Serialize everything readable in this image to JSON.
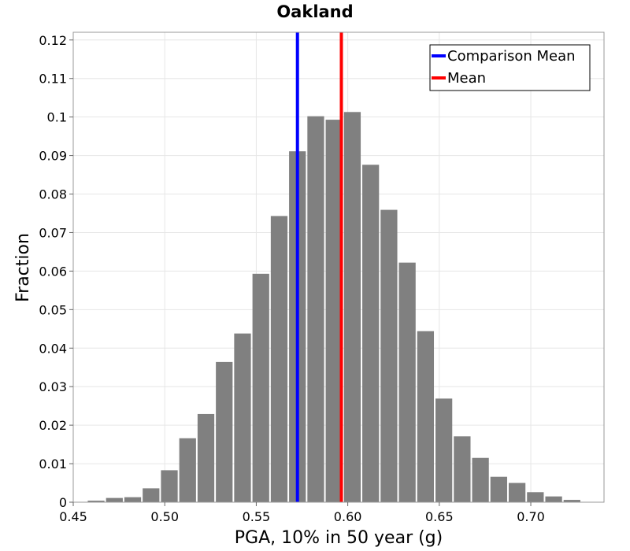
{
  "chart_data": {
    "type": "bar",
    "title": "Oakland",
    "xlabel": "PGA, 10% in 50 year (g)",
    "ylabel": "Fraction",
    "xlim": [
      0.45,
      0.74
    ],
    "ylim": [
      0,
      0.122
    ],
    "bin_width": 0.01,
    "xticks": [
      "0.45",
      "0.50",
      "0.55",
      "0.60",
      "0.65",
      "0.70"
    ],
    "yticks": [
      "0",
      "0.01",
      "0.02",
      "0.03",
      "0.04",
      "0.05",
      "0.06",
      "0.07",
      "0.08",
      "0.09",
      "0.1",
      "0.11",
      "0.12"
    ],
    "grid": true,
    "legend_position": "top-right",
    "bar_color": "#808080",
    "bins": [
      {
        "x": 0.4625,
        "value": 0.0004
      },
      {
        "x": 0.4725,
        "value": 0.0011
      },
      {
        "x": 0.4825,
        "value": 0.0013
      },
      {
        "x": 0.4925,
        "value": 0.0036
      },
      {
        "x": 0.5025,
        "value": 0.0083
      },
      {
        "x": 0.5125,
        "value": 0.0166
      },
      {
        "x": 0.5225,
        "value": 0.0229
      },
      {
        "x": 0.5325,
        "value": 0.0364
      },
      {
        "x": 0.5425,
        "value": 0.0438
      },
      {
        "x": 0.5525,
        "value": 0.0593
      },
      {
        "x": 0.5625,
        "value": 0.0743
      },
      {
        "x": 0.5725,
        "value": 0.0911
      },
      {
        "x": 0.5825,
        "value": 0.1002
      },
      {
        "x": 0.5925,
        "value": 0.0993
      },
      {
        "x": 0.6025,
        "value": 0.1013
      },
      {
        "x": 0.6125,
        "value": 0.0876
      },
      {
        "x": 0.6225,
        "value": 0.0759
      },
      {
        "x": 0.6325,
        "value": 0.0622
      },
      {
        "x": 0.6425,
        "value": 0.0444
      },
      {
        "x": 0.6525,
        "value": 0.0269
      },
      {
        "x": 0.6625,
        "value": 0.0171
      },
      {
        "x": 0.6725,
        "value": 0.0115
      },
      {
        "x": 0.6825,
        "value": 0.0066
      },
      {
        "x": 0.6925,
        "value": 0.005
      },
      {
        "x": 0.7025,
        "value": 0.0026
      },
      {
        "x": 0.7125,
        "value": 0.0015
      },
      {
        "x": 0.7225,
        "value": 0.0006
      }
    ],
    "lines": [
      {
        "name": "Comparison Mean",
        "x": 0.5725,
        "color": "#0000ff"
      },
      {
        "name": "Mean",
        "x": 0.5965,
        "color": "#ff0000"
      }
    ]
  }
}
